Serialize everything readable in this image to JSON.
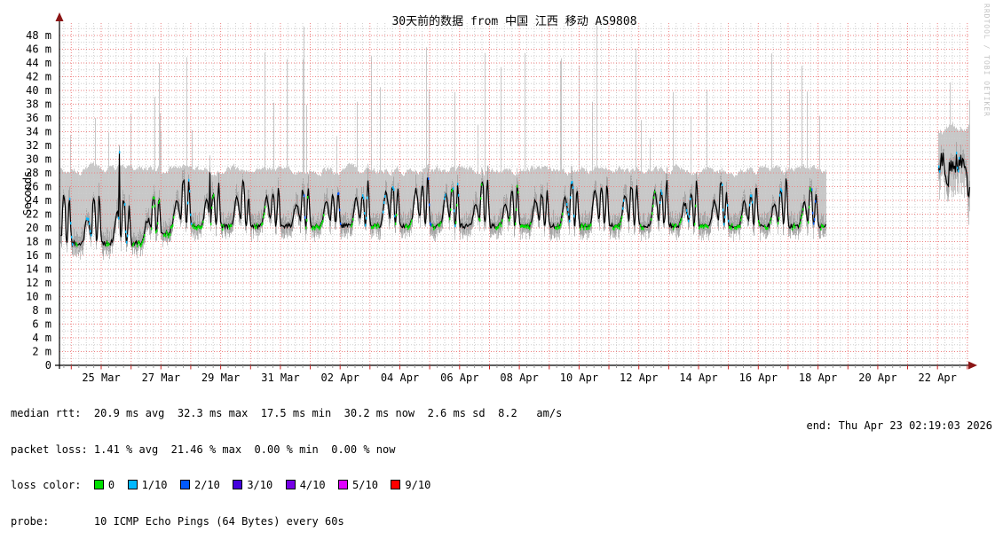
{
  "title": "30天前的数据 from 中国 江西 移动 AS9808",
  "watermark": "RRDTOOL / TOBI OETIKER",
  "y_axis_label": "Seconds",
  "chart_data": {
    "type": "area",
    "variant": "smokeping-latency",
    "title": "30天前的数据 from 中国 江西 移动 AS9808",
    "ylabel": "Seconds",
    "unit": "ms",
    "ylim": [
      0,
      50
    ],
    "y_tick_step_ms": 2,
    "y_tick_max_ms": 48,
    "y_tick_suffix": " m",
    "x_tick_labels": [
      "25 Mar",
      "27 Mar",
      "29 Mar",
      "31 Mar",
      "02 Apr",
      "04 Apr",
      "06 Apr",
      "08 Apr",
      "10 Apr",
      "12 Apr",
      "14 Apr",
      "16 Apr",
      "18 Apr",
      "20 Apr",
      "22 Apr"
    ],
    "x_label_interval_days": 2,
    "x_total_days": 30.4,
    "grid": {
      "on": true,
      "major_color": "#ee8282",
      "minor_color": "#cdcdcd"
    },
    "axis_color": "#000000",
    "arrow_color": "#8b1515",
    "tick_major_color": "#cc2222",
    "tick_minor_color": "#999999",
    "smoke_color": "#c8c8c8",
    "smoke_inner_color": "#989898",
    "median_color": "#000000",
    "stats": {
      "median_rtt": {
        "avg_ms": 20.9,
        "max_ms": 32.3,
        "min_ms": 17.5,
        "now_ms": 30.2,
        "sd_ms": 2.6,
        "am_per_s": 8.2
      },
      "packet_loss": {
        "avg_pct": 1.41,
        "max_pct": 21.46,
        "min_pct": 0.0,
        "now_pct": 0.0
      }
    },
    "segments": [
      {
        "id": "main",
        "day_start": -1.38,
        "day_end": 24.25,
        "baseline_steps": [
          {
            "until_day": 1.55,
            "ms": 17.8
          },
          {
            "until_day": 2.3,
            "ms": 19.2
          },
          {
            "until_day": 24.25,
            "ms": 20.3
          }
        ],
        "daily_humps": [
          {
            "center": 0.52,
            "width": 0.1,
            "amp_ms": 4.4,
            "power": 2
          },
          {
            "center": 0.74,
            "width": 0.06,
            "amp_ms": 5.4,
            "power": 4
          },
          {
            "center": 0.92,
            "width": 0.045,
            "amp_ms": 5.8,
            "power": 2
          }
        ],
        "median_noise_ms": 0.35,
        "median_spike_prob": 0.004,
        "median_spike_ms": [
          6,
          13
        ],
        "smoke_band_top_ms": [
          26.5,
          30.5
        ],
        "smoke_spike_prob": 0.06,
        "smoke_spike_ms": [
          33,
          49.5
        ],
        "smoke_lower_drop_ms": [
          0.4,
          2.2
        ],
        "loss_probs": {
          "green": 0.6,
          "cyan": 0.3,
          "blue": 0.12
        }
      },
      {
        "id": "tail-burst",
        "day_start": 28.02,
        "day_end": 29.06,
        "flat_median_ms": 29.4,
        "median_noise_ms": 1.6,
        "dip_prob": 0.1,
        "dip_ms": 3.6,
        "median_spike_prob": 0.01,
        "median_spike_ms": [
          2,
          4
        ],
        "smoke_band_top_ms": [
          32,
          37
        ],
        "smoke_spike_prob": 0.09,
        "smoke_spike_ms": [
          38,
          47
        ],
        "smoke_lower_drop_ms": [
          1.2,
          4.5
        ],
        "loss_probs": {
          "green": 0.3,
          "cyan": 0.15,
          "blue": 0.1
        }
      }
    ]
  },
  "footer": {
    "median_line": "median rtt:  20.9 ms avg  32.3 ms max  17.5 ms min  30.2 ms now  2.6 ms sd  8.2   am/s",
    "packet_loss_line": "packet loss: 1.41 % avg  21.46 % max  0.00 % min  0.00 % now",
    "loss_color_label": "loss color:  ",
    "loss_colors": [
      {
        "label": "0",
        "color": "#00e000"
      },
      {
        "label": "1/10",
        "color": "#00b8ff"
      },
      {
        "label": "2/10",
        "color": "#0059ff"
      },
      {
        "label": "3/10",
        "color": "#4400dd"
      },
      {
        "label": "4/10",
        "color": "#7700e6"
      },
      {
        "label": "5/10",
        "color": "#e000ff"
      },
      {
        "label": "9/10",
        "color": "#ff0000"
      }
    ],
    "probe_line": "probe:       10 ICMP Echo Pings (64 Bytes) every 60s",
    "end_line": "end: Thu Apr 23 02:19:03 2026"
  }
}
